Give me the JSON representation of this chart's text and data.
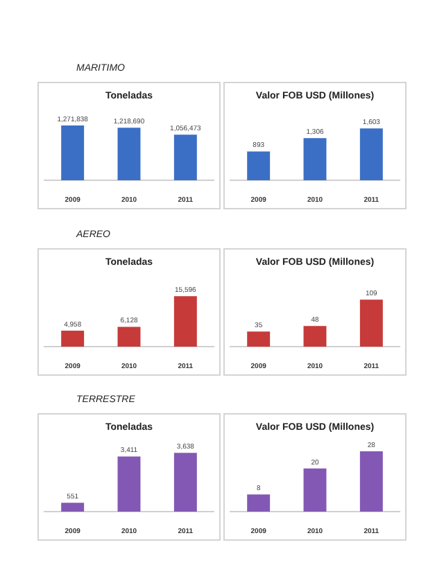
{
  "chart_data": [
    {
      "type": "bar",
      "title": "Toneladas",
      "annotations": [
        "MARITIMO"
      ],
      "categories": [
        "2009",
        "2010",
        "2011"
      ],
      "values": [
        1271838,
        1218690,
        1056473
      ],
      "value_labels": [
        "1,271,838",
        "1,218,690",
        "1,056,473"
      ],
      "color": "#3b6fc6"
    },
    {
      "type": "bar",
      "title": "Valor FOB USD (Millones)",
      "categories": [
        "2009",
        "2010",
        "2011"
      ],
      "values": [
        893,
        1306,
        1603
      ],
      "value_labels": [
        "893",
        "1,306",
        "1,603"
      ],
      "color": "#3b6fc6"
    },
    {
      "type": "bar",
      "title": "Toneladas",
      "annotations": [
        "AEREO"
      ],
      "categories": [
        "2009",
        "2010",
        "2011"
      ],
      "values": [
        4958,
        6128,
        15596
      ],
      "value_labels": [
        "4,958",
        "6,128",
        "15,596"
      ],
      "color": "#c73a3a"
    },
    {
      "type": "bar",
      "title": "Valor FOB USD (Millones)",
      "categories": [
        "2009",
        "2010",
        "2011"
      ],
      "values": [
        35,
        48,
        109
      ],
      "value_labels": [
        "35",
        "48",
        "109"
      ],
      "color": "#c73a3a"
    },
    {
      "type": "bar",
      "title": "Toneladas",
      "annotations": [
        "TERRESTRE"
      ],
      "categories": [
        "2009",
        "2010",
        "2011"
      ],
      "values": [
        551,
        3411,
        3638
      ],
      "value_labels": [
        "551",
        "3,411",
        "3,638"
      ],
      "color": "#8358b4"
    },
    {
      "type": "bar",
      "title": "Valor FOB USD (Millones)",
      "categories": [
        "2009",
        "2010",
        "2011"
      ],
      "values": [
        8,
        20,
        28
      ],
      "value_labels": [
        "8",
        "20",
        "28"
      ],
      "color": "#8358b4"
    }
  ]
}
